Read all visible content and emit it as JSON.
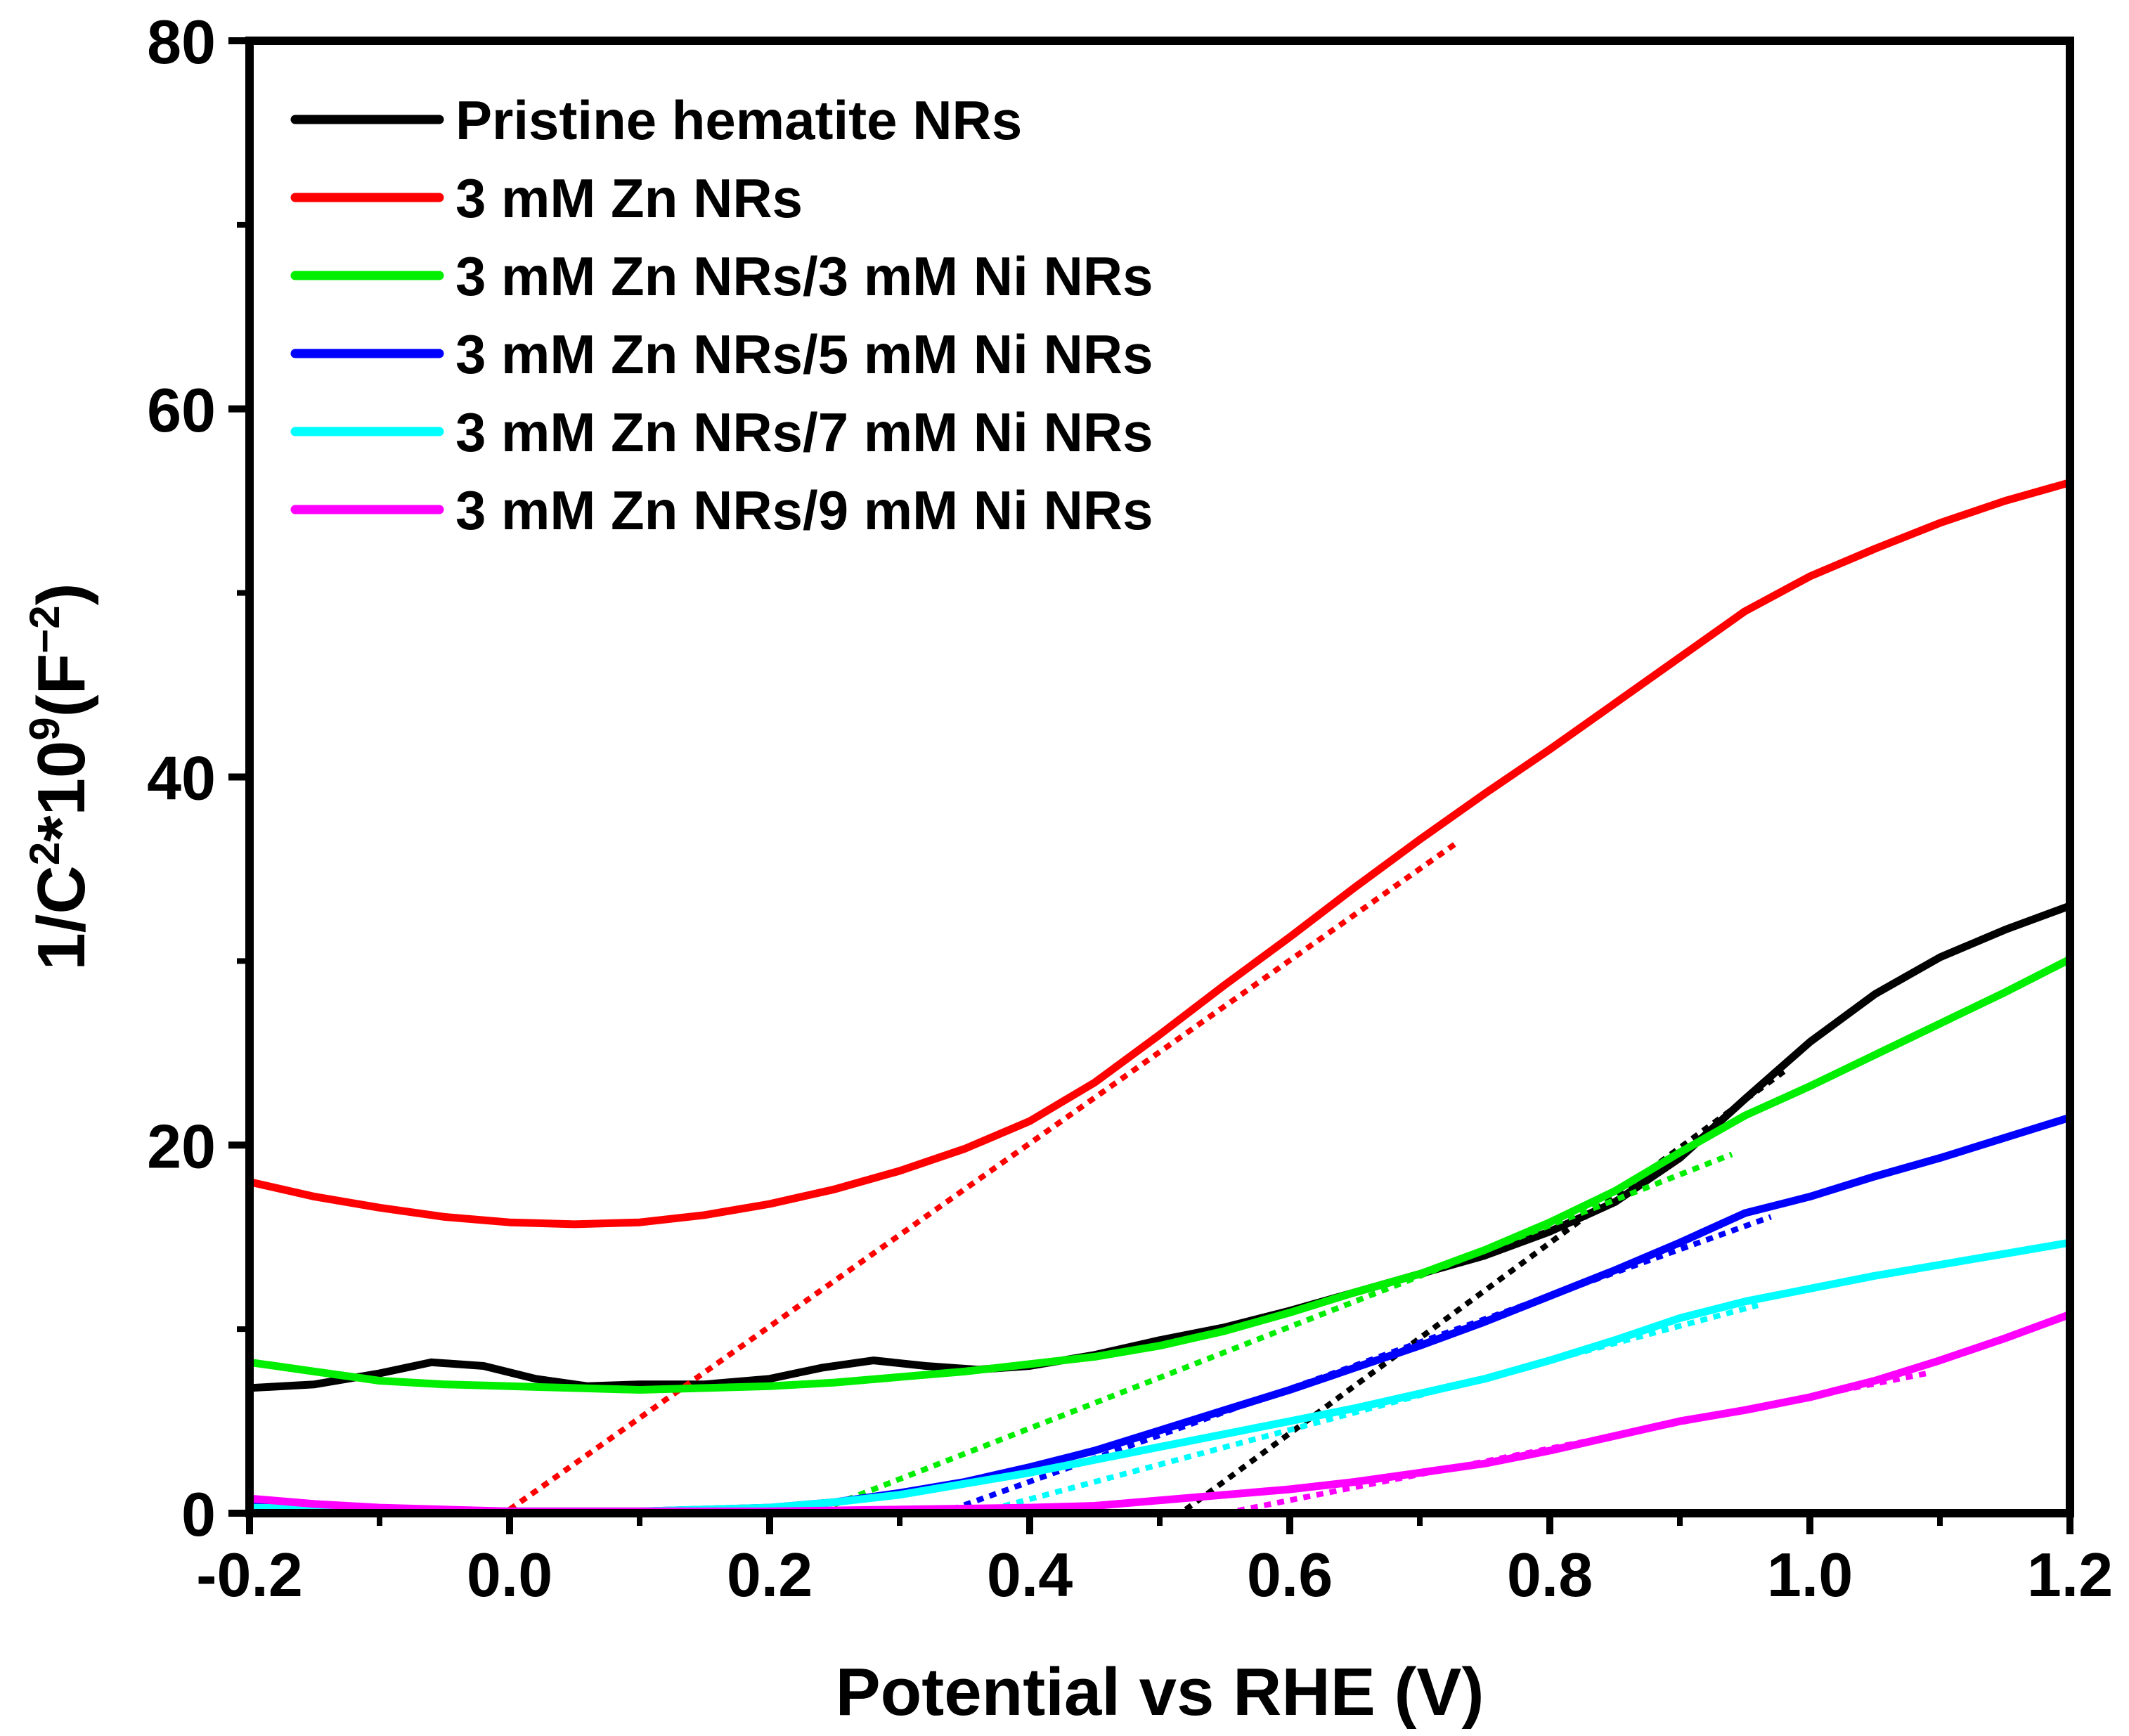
{
  "chart_data": {
    "type": "line",
    "title": "",
    "xlabel": "Potential vs RHE (V)",
    "ylabel": {
      "base": "1/C",
      "sup1": "2",
      "mid": "*10",
      "sup2": "9",
      "unit_open": "(F",
      "sup3": "−2",
      "unit_close": ")"
    },
    "xlim": [
      -0.2,
      1.2
    ],
    "ylim": [
      0,
      80
    ],
    "x_ticks": [
      -0.2,
      0.0,
      0.2,
      0.4,
      0.6,
      0.8,
      1.0,
      1.2
    ],
    "x_tick_labels": [
      "-0.2",
      "0.0",
      "0.2",
      "0.4",
      "0.6",
      "0.8",
      "1.0",
      "1.2"
    ],
    "y_ticks": [
      0,
      20,
      40,
      60,
      80
    ],
    "y_tick_labels": [
      "0",
      "20",
      "40",
      "60",
      "80"
    ],
    "grid": false,
    "legend_position": "top-left",
    "series": [
      {
        "name": "Pristine hematite NRs",
        "color": "#000000",
        "points": [
          [
            -0.2,
            6.8
          ],
          [
            -0.15,
            7.0
          ],
          [
            -0.1,
            7.6
          ],
          [
            -0.06,
            8.2
          ],
          [
            -0.02,
            8.0
          ],
          [
            0.02,
            7.3
          ],
          [
            0.06,
            6.9
          ],
          [
            0.1,
            7.0
          ],
          [
            0.15,
            7.0
          ],
          [
            0.2,
            7.3
          ],
          [
            0.24,
            7.9
          ],
          [
            0.28,
            8.3
          ],
          [
            0.32,
            8.0
          ],
          [
            0.36,
            7.8
          ],
          [
            0.4,
            8.0
          ],
          [
            0.45,
            8.6
          ],
          [
            0.5,
            9.4
          ],
          [
            0.55,
            10.1
          ],
          [
            0.6,
            11.0
          ],
          [
            0.65,
            12.0
          ],
          [
            0.7,
            13.0
          ],
          [
            0.75,
            14.0
          ],
          [
            0.8,
            15.3
          ],
          [
            0.85,
            16.9
          ],
          [
            0.9,
            19.3
          ],
          [
            0.95,
            22.5
          ],
          [
            1.0,
            25.6
          ],
          [
            1.05,
            28.2
          ],
          [
            1.1,
            30.2
          ],
          [
            1.15,
            31.7
          ],
          [
            1.2,
            33.0
          ]
        ],
        "fit": [
          [
            0.52,
            0.2
          ],
          [
            0.98,
            24.0
          ]
        ]
      },
      {
        "name": "3 mM Zn NRs",
        "color": "#ff0000",
        "points": [
          [
            -0.2,
            18.0
          ],
          [
            -0.15,
            17.2
          ],
          [
            -0.1,
            16.6
          ],
          [
            -0.05,
            16.1
          ],
          [
            0.0,
            15.8
          ],
          [
            0.05,
            15.7
          ],
          [
            0.1,
            15.8
          ],
          [
            0.15,
            16.2
          ],
          [
            0.2,
            16.8
          ],
          [
            0.25,
            17.6
          ],
          [
            0.3,
            18.6
          ],
          [
            0.35,
            19.8
          ],
          [
            0.4,
            21.3
          ],
          [
            0.45,
            23.4
          ],
          [
            0.5,
            26.0
          ],
          [
            0.55,
            28.7
          ],
          [
            0.6,
            31.3
          ],
          [
            0.65,
            34.0
          ],
          [
            0.7,
            36.6
          ],
          [
            0.75,
            39.1
          ],
          [
            0.8,
            41.5
          ],
          [
            0.85,
            44.0
          ],
          [
            0.9,
            46.5
          ],
          [
            0.95,
            49.0
          ],
          [
            1.0,
            50.9
          ],
          [
            1.05,
            52.4
          ],
          [
            1.1,
            53.8
          ],
          [
            1.15,
            55.0
          ],
          [
            1.2,
            56.0
          ]
        ],
        "fit": [
          [
            0.0,
            0.2
          ],
          [
            0.73,
            36.5
          ]
        ]
      },
      {
        "name": "3 mM Zn NRs/3 mM Ni NRs",
        "color": "#00ee00",
        "points": [
          [
            -0.2,
            8.2
          ],
          [
            -0.15,
            7.7
          ],
          [
            -0.1,
            7.2
          ],
          [
            -0.05,
            7.0
          ],
          [
            0.0,
            6.9
          ],
          [
            0.05,
            6.8
          ],
          [
            0.1,
            6.7
          ],
          [
            0.15,
            6.8
          ],
          [
            0.2,
            6.9
          ],
          [
            0.25,
            7.1
          ],
          [
            0.3,
            7.4
          ],
          [
            0.35,
            7.7
          ],
          [
            0.4,
            8.1
          ],
          [
            0.45,
            8.5
          ],
          [
            0.5,
            9.1
          ],
          [
            0.55,
            9.9
          ],
          [
            0.6,
            10.9
          ],
          [
            0.65,
            12.0
          ],
          [
            0.7,
            13.0
          ],
          [
            0.75,
            14.3
          ],
          [
            0.8,
            15.8
          ],
          [
            0.85,
            17.5
          ],
          [
            0.9,
            19.6
          ],
          [
            0.95,
            21.6
          ],
          [
            1.0,
            23.2
          ],
          [
            1.05,
            24.9
          ],
          [
            1.1,
            26.6
          ],
          [
            1.15,
            28.3
          ],
          [
            1.2,
            30.1
          ]
        ],
        "fit": [
          [
            0.24,
            0.2
          ],
          [
            0.94,
            19.5
          ]
        ]
      },
      {
        "name": "3 mM Zn NRs/5 mM Ni NRs",
        "color": "#0000ff",
        "points": [
          [
            -0.2,
            0.4
          ],
          [
            -0.1,
            0.2
          ],
          [
            0.0,
            0.1
          ],
          [
            0.1,
            0.1
          ],
          [
            0.2,
            0.3
          ],
          [
            0.25,
            0.6
          ],
          [
            0.3,
            1.1
          ],
          [
            0.35,
            1.7
          ],
          [
            0.4,
            2.5
          ],
          [
            0.45,
            3.4
          ],
          [
            0.5,
            4.5
          ],
          [
            0.55,
            5.6
          ],
          [
            0.6,
            6.7
          ],
          [
            0.65,
            7.9
          ],
          [
            0.7,
            9.1
          ],
          [
            0.75,
            10.4
          ],
          [
            0.8,
            11.8
          ],
          [
            0.85,
            13.2
          ],
          [
            0.9,
            14.7
          ],
          [
            0.95,
            16.3
          ],
          [
            1.0,
            17.2
          ],
          [
            1.05,
            18.3
          ],
          [
            1.1,
            19.3
          ],
          [
            1.15,
            20.4
          ],
          [
            1.2,
            21.5
          ]
        ],
        "fit": [
          [
            0.34,
            0.2
          ],
          [
            0.97,
            16.1
          ]
        ]
      },
      {
        "name": "3 mM Zn NRs/7 mM Ni NRs",
        "color": "#00ffff",
        "points": [
          [
            -0.2,
            0.3
          ],
          [
            -0.1,
            0.2
          ],
          [
            0.0,
            0.1
          ],
          [
            0.1,
            0.1
          ],
          [
            0.2,
            0.3
          ],
          [
            0.25,
            0.6
          ],
          [
            0.3,
            1.0
          ],
          [
            0.35,
            1.6
          ],
          [
            0.4,
            2.2
          ],
          [
            0.45,
            2.9
          ],
          [
            0.5,
            3.6
          ],
          [
            0.55,
            4.3
          ],
          [
            0.6,
            5.0
          ],
          [
            0.65,
            5.7
          ],
          [
            0.7,
            6.5
          ],
          [
            0.75,
            7.3
          ],
          [
            0.8,
            8.3
          ],
          [
            0.85,
            9.4
          ],
          [
            0.9,
            10.6
          ],
          [
            0.95,
            11.5
          ],
          [
            1.0,
            12.2
          ],
          [
            1.05,
            12.9
          ],
          [
            1.1,
            13.5
          ],
          [
            1.15,
            14.1
          ],
          [
            1.2,
            14.7
          ]
        ],
        "fit": [
          [
            0.37,
            0.2
          ],
          [
            0.96,
            11.3
          ]
        ]
      },
      {
        "name": "3 mM Zn NRs/9 mM Ni NRs",
        "color": "#ff00ff",
        "points": [
          [
            -0.2,
            0.8
          ],
          [
            -0.15,
            0.5
          ],
          [
            -0.1,
            0.3
          ],
          [
            -0.05,
            0.2
          ],
          [
            0.0,
            0.1
          ],
          [
            0.1,
            0.1
          ],
          [
            0.2,
            0.1
          ],
          [
            0.3,
            0.2
          ],
          [
            0.4,
            0.3
          ],
          [
            0.45,
            0.4
          ],
          [
            0.5,
            0.7
          ],
          [
            0.55,
            1.0
          ],
          [
            0.6,
            1.3
          ],
          [
            0.65,
            1.7
          ],
          [
            0.7,
            2.2
          ],
          [
            0.75,
            2.7
          ],
          [
            0.8,
            3.4
          ],
          [
            0.85,
            4.2
          ],
          [
            0.9,
            5.0
          ],
          [
            0.95,
            5.6
          ],
          [
            1.0,
            6.3
          ],
          [
            1.05,
            7.2
          ],
          [
            1.1,
            8.3
          ],
          [
            1.15,
            9.5
          ],
          [
            1.2,
            10.8
          ]
        ],
        "fit": [
          [
            0.55,
            0.0
          ],
          [
            1.09,
            7.6
          ]
        ]
      }
    ]
  }
}
